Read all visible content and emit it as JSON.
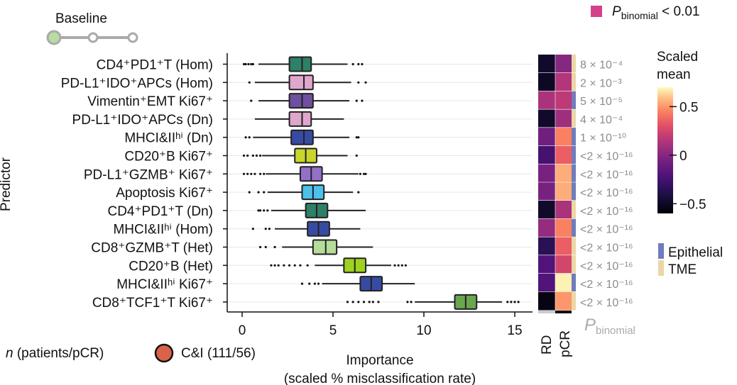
{
  "chart_data": {
    "type": "boxplot",
    "baseline_label": "Baseline",
    "ylabel": "Predictor",
    "xlabel": "Importance",
    "xlabel_sub": "(scaled % misclassification rate)",
    "xlim": [
      -0.5,
      15.5
    ],
    "xticks": [
      0,
      5,
      10,
      15
    ],
    "significance_legend": "P binomial < 0.01",
    "significance_legend_parts": {
      "p": "P",
      "sub": "binomial",
      "rest": " < 0.01"
    },
    "significance_color": "#d6408b",
    "cohort_label": "n (patients/pCR)",
    "cohort_parts": {
      "n": "n",
      "rest": " (patients/pCR)"
    },
    "cohort_entry": "C&I (111/56)",
    "cohort_color": "#d9634a",
    "heatmap_columns": [
      "RD",
      "pCR"
    ],
    "heatmap_column_bar_colors": [
      "#cccccc",
      "#111111"
    ],
    "pbinomial_header": {
      "p": "P",
      "sub": "binomial"
    },
    "colorbar": {
      "title_lines": [
        "Scaled",
        "mean"
      ],
      "ticks": [
        0.5,
        0,
        -0.5
      ],
      "tick_labels": [
        "0.5",
        "0",
        "−0.5"
      ],
      "range": [
        -0.6,
        0.7
      ]
    },
    "category_legend": [
      {
        "label": "Epithelial",
        "color": "#6f7dbc"
      },
      {
        "label": "TME",
        "color": "#ead7a5"
      }
    ],
    "rows": [
      {
        "label": "CD4⁺PD1⁺T (Hom)",
        "q1": 2.6,
        "median": 3.3,
        "q3": 3.8,
        "wlo": 0.9,
        "whi": 5.8,
        "outliers": [
          0.1,
          0.2,
          0.35,
          0.5,
          0.6,
          6.1,
          6.4,
          6.6
        ],
        "color": "#2e8068",
        "rd": -0.48,
        "pcr": 0.0,
        "cat": "TME",
        "p": "8 × 10⁻⁴"
      },
      {
        "label": "PD-L1⁺IDO⁺APCs (Hom)",
        "q1": 2.6,
        "median": 3.4,
        "q3": 3.9,
        "wlo": 0.7,
        "whi": 6.0,
        "outliers": [
          0.4,
          6.4,
          6.8
        ],
        "color": "#e0a6cc",
        "rd": -0.5,
        "pcr": 0.15,
        "cat": "TME",
        "p": "2 × 10⁻³"
      },
      {
        "label": "Vimentin⁺EMT Ki67⁺",
        "q1": 2.6,
        "median": 3.3,
        "q3": 3.9,
        "wlo": 0.9,
        "whi": 5.9,
        "outliers": [
          0.5,
          6.3,
          6.6
        ],
        "color": "#6f4fa0",
        "rd": 0.12,
        "pcr": 0.18,
        "cat": "Epithelial",
        "p": "5 × 10⁻⁵"
      },
      {
        "label": "PD-L1⁺IDO⁺APCs (Dn)",
        "q1": 2.6,
        "median": 3.3,
        "q3": 3.8,
        "wlo": 0.7,
        "whi": 5.6,
        "outliers": [],
        "color": "#e0a6cc",
        "rd": -0.48,
        "pcr": 0.08,
        "cat": "TME",
        "p": "4 × 10⁻⁴"
      },
      {
        "label": "MHCI&IIʰⁱ (Dn)",
        "q1": 2.7,
        "median": 3.4,
        "q3": 3.9,
        "wlo": 0.6,
        "whi": 5.9,
        "outliers": [
          0.2,
          0.4,
          6.3,
          6.4
        ],
        "color": "#384ba3",
        "rd": -0.08,
        "pcr": 0.45,
        "cat": "Epithelial",
        "p": "1 × 10⁻¹⁰"
      },
      {
        "label": "CD20⁺B Ki67⁺",
        "q1": 2.9,
        "median": 3.5,
        "q3": 4.1,
        "wlo": 1.1,
        "whi": 5.8,
        "outliers": [
          0.1,
          0.3,
          0.6,
          0.8,
          1.0,
          6.3
        ],
        "color": "#c8d62c",
        "rd": -0.25,
        "pcr": 0.35,
        "cat": "Epithelial",
        "p": "<2 × 10⁻¹⁶"
      },
      {
        "label": "PD-L1⁺GZMB⁺ Ki67⁺",
        "q1": 3.2,
        "median": 3.8,
        "q3": 4.4,
        "wlo": 1.3,
        "whi": 6.4,
        "outliers": [
          0.1,
          0.3,
          0.5,
          0.7,
          1.0,
          1.2,
          6.5,
          6.7,
          6.8
        ],
        "color": "#9370c8",
        "rd": -0.05,
        "pcr": 0.55,
        "cat": "Epithelial",
        "p": "<2 × 10⁻¹⁶"
      },
      {
        "label": "Apoptosis Ki67⁺",
        "q1": 3.3,
        "median": 3.9,
        "q3": 4.5,
        "wlo": 1.4,
        "whi": 6.1,
        "outliers": [
          0.4,
          0.9,
          1.2,
          6.4
        ],
        "color": "#4cc1ea",
        "rd": -0.05,
        "pcr": 0.55,
        "cat": "Epithelial",
        "p": "<2 × 10⁻¹⁶"
      },
      {
        "label": "CD4⁺PD1⁺T (Dn)",
        "q1": 3.5,
        "median": 4.1,
        "q3": 4.7,
        "wlo": 1.6,
        "whi": 6.8,
        "outliers": [
          0.9,
          1.0,
          1.2,
          1.4
        ],
        "color": "#2e8068",
        "rd": -0.48,
        "pcr": 0.12,
        "cat": "TME",
        "p": "<2 × 10⁻¹⁶"
      },
      {
        "label": "MHCI&IIʰⁱ (Hom)",
        "q1": 3.6,
        "median": 4.2,
        "q3": 4.8,
        "wlo": 1.8,
        "whi": 6.5,
        "outliers": [
          0.6,
          1.3,
          1.5
        ],
        "color": "#384ba3",
        "rd": 0.05,
        "pcr": 0.45,
        "cat": "Epithelial",
        "p": "<2 × 10⁻¹⁶"
      },
      {
        "label": "CD8⁺GZMB⁺T (Het)",
        "q1": 3.9,
        "median": 4.6,
        "q3": 5.2,
        "wlo": 2.2,
        "whi": 7.2,
        "outliers": [
          1.0,
          1.3,
          1.8
        ],
        "color": "#b6dc9c",
        "rd": -0.35,
        "pcr": 0.35,
        "cat": "TME",
        "p": "<2 × 10⁻¹⁶"
      },
      {
        "label": "CD20⁺B (Het)",
        "q1": 5.6,
        "median": 6.2,
        "q3": 6.8,
        "wlo": 4.0,
        "whi": 8.2,
        "outliers": [
          1.6,
          1.8,
          2.0,
          2.3,
          2.6,
          2.9,
          3.2,
          3.6,
          8.4,
          8.6,
          8.8,
          9.0
        ],
        "color": "#9ed21e",
        "rd": -0.2,
        "pcr": 0.25,
        "cat": "TME",
        "p": "<2 × 10⁻¹⁶"
      },
      {
        "label": "MHCI&IIʰⁱ Ki67⁺",
        "q1": 6.5,
        "median": 7.1,
        "q3": 7.7,
        "wlo": 4.4,
        "whi": 9.5,
        "outliers": [
          3.3,
          3.7,
          4.0,
          4.2
        ],
        "color": "#384ba3",
        "rd": -0.2,
        "pcr": 0.68,
        "cat": "Epithelial",
        "p": "<2 × 10⁻¹⁶"
      },
      {
        "label": "CD8⁺TCF1⁺T Ki67⁺",
        "q1": 11.7,
        "median": 12.3,
        "q3": 12.9,
        "wlo": 9.5,
        "whi": 14.3,
        "outliers": [
          5.8,
          6.1,
          6.4,
          6.7,
          7.0,
          7.2,
          7.5,
          9.1,
          9.3,
          14.6,
          14.8,
          15.0,
          15.2
        ],
        "color": "#6aa64e",
        "rd": -0.55,
        "pcr": 0.5,
        "cat": "TME",
        "p": "<2 × 10⁻¹⁶"
      }
    ]
  }
}
